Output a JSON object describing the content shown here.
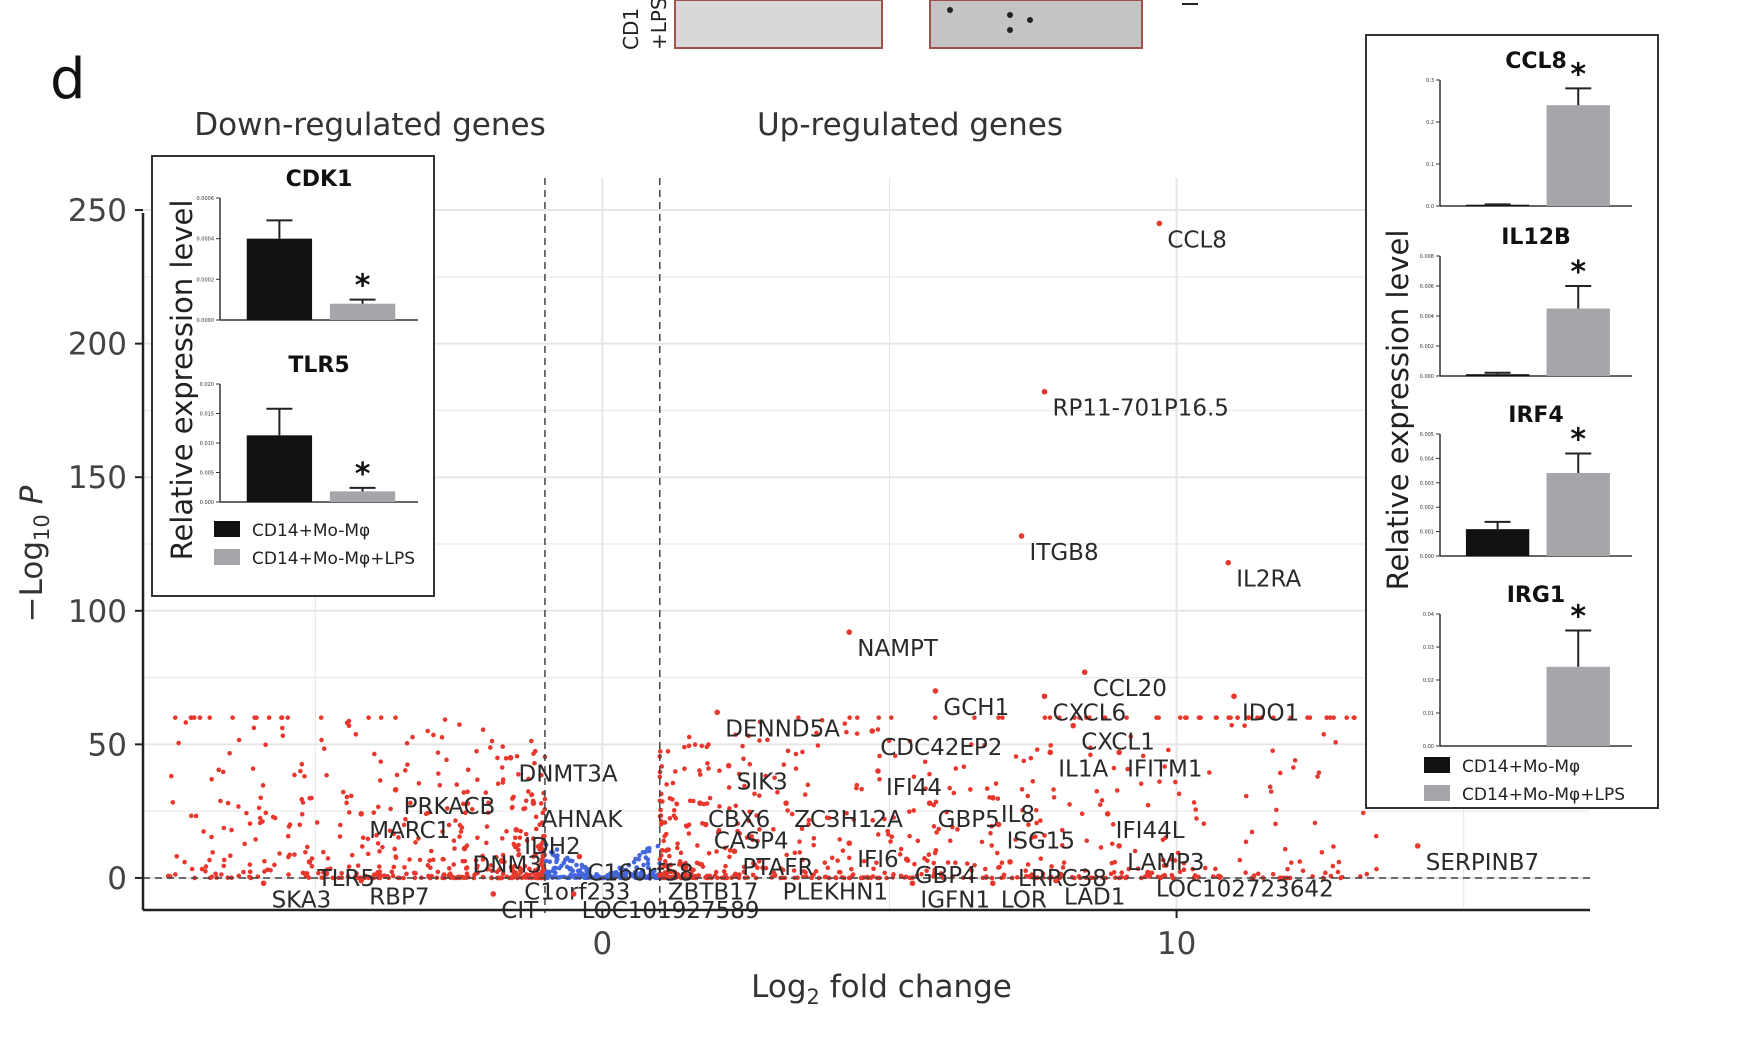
{
  "panel_label": "d",
  "top_fragment": {
    "text_a": "CD1",
    "text_b": "+LPS"
  },
  "section_titles": {
    "down": "Down-regulated genes",
    "up": "Up-regulated genes"
  },
  "colors": {
    "sig": "#e8372d",
    "nonsig": "#4466dd",
    "bar_ctrl": "#111111",
    "bar_lps": "#a6a6aa",
    "axis": "#222222",
    "grid": "#e6e6e6"
  },
  "chart_data": [
    {
      "type": "scatter",
      "title": "",
      "xlabel": "Log2 fold change",
      "ylabel": "-Log10 P",
      "xlim": [
        -8,
        17.2
      ],
      "ylim": [
        -12,
        262
      ],
      "xticks": [
        0,
        10
      ],
      "yticks": [
        0,
        50,
        100,
        150,
        200,
        250
      ],
      "thresholds": {
        "log2fc": [
          -1,
          1
        ],
        "p_line": 0
      },
      "grid": true,
      "labeled_points": [
        {
          "label": "CCL8",
          "x": 9.7,
          "y": 245
        },
        {
          "label": "RP11-701P16.5",
          "x": 7.7,
          "y": 182
        },
        {
          "label": "ITGB8",
          "x": 7.3,
          "y": 128
        },
        {
          "label": "IL2RA",
          "x": 10.9,
          "y": 118
        },
        {
          "label": "NAMPT",
          "x": 4.3,
          "y": 92
        },
        {
          "label": "GCH1",
          "x": 5.8,
          "y": 70
        },
        {
          "label": "CCL20",
          "x": 8.4,
          "y": 77
        },
        {
          "label": "CXCL6",
          "x": 7.7,
          "y": 68
        },
        {
          "label": "CXCL1",
          "x": 8.2,
          "y": 57
        },
        {
          "label": "IDO1",
          "x": 11.0,
          "y": 68
        },
        {
          "label": "DENND5A",
          "x": 2.0,
          "y": 62
        },
        {
          "label": "CDC42EP2",
          "x": 4.7,
          "y": 55
        },
        {
          "label": "IFITM1",
          "x": 9.0,
          "y": 47
        },
        {
          "label": "IL1A",
          "x": 7.8,
          "y": 47
        },
        {
          "label": "SIK3",
          "x": 2.2,
          "y": 42
        },
        {
          "label": "IFI44",
          "x": 4.8,
          "y": 40
        },
        {
          "label": "DNMT3A",
          "x": -1.6,
          "y": 45
        },
        {
          "label": "PRKACB",
          "x": -3.6,
          "y": 33
        },
        {
          "label": "AHNAK",
          "x": -1.2,
          "y": 28
        },
        {
          "label": "MARC1",
          "x": -4.2,
          "y": 24
        },
        {
          "label": "IDH2",
          "x": -1.5,
          "y": 18
        },
        {
          "label": "CBX6",
          "x": 1.7,
          "y": 28
        },
        {
          "label": "ZC3H12A",
          "x": 3.2,
          "y": 28
        },
        {
          "label": "GBP5",
          "x": 5.7,
          "y": 28
        },
        {
          "label": "IL8",
          "x": 6.8,
          "y": 30
        },
        {
          "label": "CASP4",
          "x": 1.8,
          "y": 20
        },
        {
          "label": "ISG15",
          "x": 6.9,
          "y": 20
        },
        {
          "label": "IFI44L",
          "x": 8.8,
          "y": 24
        },
        {
          "label": "DNM3",
          "x": -2.4,
          "y": 11
        },
        {
          "label": "C16orf58",
          "x": -0.4,
          "y": 8
        },
        {
          "label": "IFI6",
          "x": 4.3,
          "y": 13
        },
        {
          "label": "PTAFR",
          "x": 2.3,
          "y": 10
        },
        {
          "label": "LAMP3",
          "x": 9.0,
          "y": 12
        },
        {
          "label": "SERPINB7",
          "x": 14.2,
          "y": 12
        },
        {
          "label": "TLR5",
          "x": -5.1,
          "y": 6
        },
        {
          "label": "GBP4",
          "x": 5.3,
          "y": 7
        },
        {
          "label": "LRRC38",
          "x": 7.1,
          "y": 6
        },
        {
          "label": "C1orf233",
          "x": -1.5,
          "y": 1
        },
        {
          "label": "ZBTB17",
          "x": 1.0,
          "y": 1
        },
        {
          "label": "PLEKHN1",
          "x": 3.0,
          "y": 1
        },
        {
          "label": "LOC102723642",
          "x": 9.5,
          "y": 2
        },
        {
          "label": "SKA3",
          "x": -5.9,
          "y": -2
        },
        {
          "label": "RBP7",
          "x": -4.2,
          "y": -1
        },
        {
          "label": "IGFN1",
          "x": 5.4,
          "y": -2
        },
        {
          "label": "LOR",
          "x": 6.8,
          "y": -2
        },
        {
          "label": "LAD1",
          "x": 7.9,
          "y": -1
        },
        {
          "label": "CIT",
          "x": -1.9,
          "y": -6
        },
        {
          "label": "LOC101927589",
          "x": -0.5,
          "y": -6
        }
      ]
    },
    {
      "type": "bar",
      "title": "CDK1",
      "ylabel": "Relative expression level",
      "categories": [
        "CD14+Mo-Mφ",
        "CD14+Mo-Mφ+LPS"
      ],
      "values": [
        0.0004,
        8e-05
      ],
      "errors": [
        9e-05,
        2e-05
      ],
      "ylim": [
        0,
        0.0006
      ],
      "yticks": [
        "0.0000",
        "0.0002",
        "0.0004",
        "0.0006"
      ],
      "significance": [
        "",
        "*"
      ]
    },
    {
      "type": "bar",
      "title": "TLR5",
      "ylabel": "Relative expression level",
      "categories": [
        "CD14+Mo-Mφ",
        "CD14+Mo-Mφ+LPS"
      ],
      "values": [
        0.0113,
        0.0018
      ],
      "errors": [
        0.0045,
        0.0006
      ],
      "ylim": [
        0,
        0.02
      ],
      "yticks": [
        "0.000",
        "0.005",
        "0.010",
        "0.015",
        "0.020"
      ],
      "significance": [
        "",
        "*"
      ]
    },
    {
      "type": "bar",
      "title": "CCL8",
      "ylabel": "Relative expression level",
      "categories": [
        "CD14+Mo-Mφ",
        "CD14+Mo-Mφ+LPS"
      ],
      "values": [
        0.003,
        0.24
      ],
      "errors": [
        0.001,
        0.04
      ],
      "ylim": [
        0,
        0.3
      ],
      "yticks": [
        "0.0",
        "0.1",
        "0.2",
        "0.3"
      ],
      "significance": [
        "",
        "*"
      ]
    },
    {
      "type": "bar",
      "title": "IL12B",
      "ylabel": "Relative expression level",
      "categories": [
        "CD14+Mo-Mφ",
        "CD14+Mo-Mφ+LPS"
      ],
      "values": [
        0.00012,
        0.0045
      ],
      "errors": [
        0.0001,
        0.0015
      ],
      "ylim": [
        0,
        0.008
      ],
      "yticks": [
        "0.000",
        "0.002",
        "0.004",
        "0.006",
        "0.008"
      ],
      "significance": [
        "",
        "*"
      ]
    },
    {
      "type": "bar",
      "title": "IRF4",
      "ylabel": "Relative expression level",
      "categories": [
        "CD14+Mo-Mφ",
        "CD14+Mo-Mφ+LPS"
      ],
      "values": [
        0.0011,
        0.0034
      ],
      "errors": [
        0.0003,
        0.0008
      ],
      "ylim": [
        0,
        0.005
      ],
      "yticks": [
        "0.000",
        "0.001",
        "0.002",
        "0.003",
        "0.004",
        "0.005"
      ],
      "significance": [
        "",
        "*"
      ]
    },
    {
      "type": "bar",
      "title": "IRG1",
      "ylabel": "Relative expression level",
      "categories": [
        "CD14+Mo-Mφ",
        "CD14+Mo-Mφ+LPS"
      ],
      "values": [
        0,
        0.024
      ],
      "errors": [
        0,
        0.011
      ],
      "ylim": [
        0,
        0.04
      ],
      "yticks": [
        "0.00",
        "0.01",
        "0.02",
        "0.03",
        "0.04"
      ],
      "significance": [
        "",
        "*"
      ]
    }
  ]
}
